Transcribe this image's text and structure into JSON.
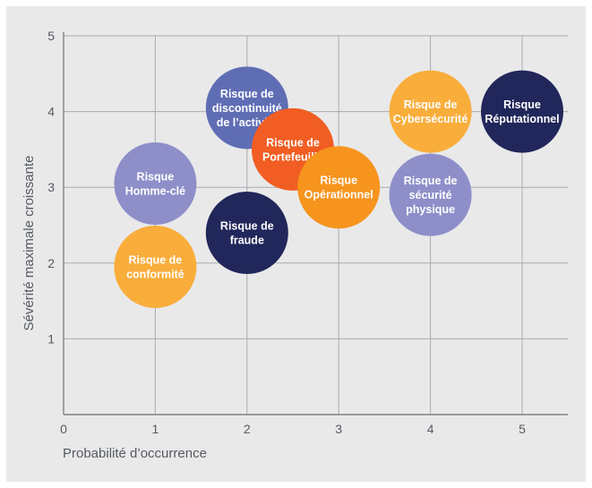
{
  "chart_data": {
    "type": "scatter",
    "title": "",
    "xlabel": "Probabilité d’occurrence",
    "ylabel": "Sévérité maximale croissante",
    "xlim": [
      0,
      5.4
    ],
    "ylim": [
      0,
      5
    ],
    "x_ticks": [
      "0",
      "1",
      "2",
      "3",
      "4",
      "5"
    ],
    "y_ticks": [
      "1",
      "2",
      "3",
      "4",
      "5"
    ],
    "grid": true,
    "points": [
      {
        "lines": [
          "Risque",
          "Homme-clé"
        ],
        "x": 1.0,
        "y": 3.05,
        "color": "#8e8fc9"
      },
      {
        "lines": [
          "Risque de",
          "conformité"
        ],
        "x": 1.0,
        "y": 1.95,
        "color": "#f9ad3b"
      },
      {
        "lines": [
          "Risque de",
          "fraude"
        ],
        "x": 2.0,
        "y": 2.4,
        "color": "#21275a"
      },
      {
        "lines": [
          "Risque de",
          "discontinuité",
          "de l’activité"
        ],
        "x": 2.0,
        "y": 4.05,
        "color": "#5f6db4"
      },
      {
        "lines": [
          "Risque de",
          "Portefeuille"
        ],
        "x": 2.5,
        "y": 3.5,
        "color": "#f15d22"
      },
      {
        "lines": [
          "Risque",
          "Opérationnel"
        ],
        "x": 3.0,
        "y": 3.0,
        "color": "#f7941d"
      },
      {
        "lines": [
          "Risque de",
          "Cybersécurité"
        ],
        "x": 4.0,
        "y": 4.0,
        "color": "#f9ad3b"
      },
      {
        "lines": [
          "Risque de",
          "sécurité",
          "physique"
        ],
        "x": 4.0,
        "y": 2.9,
        "color": "#8e8fc9"
      },
      {
        "lines": [
          "Risque",
          "Réputationnel"
        ],
        "x": 5.0,
        "y": 4.0,
        "color": "#21275a"
      }
    ]
  }
}
